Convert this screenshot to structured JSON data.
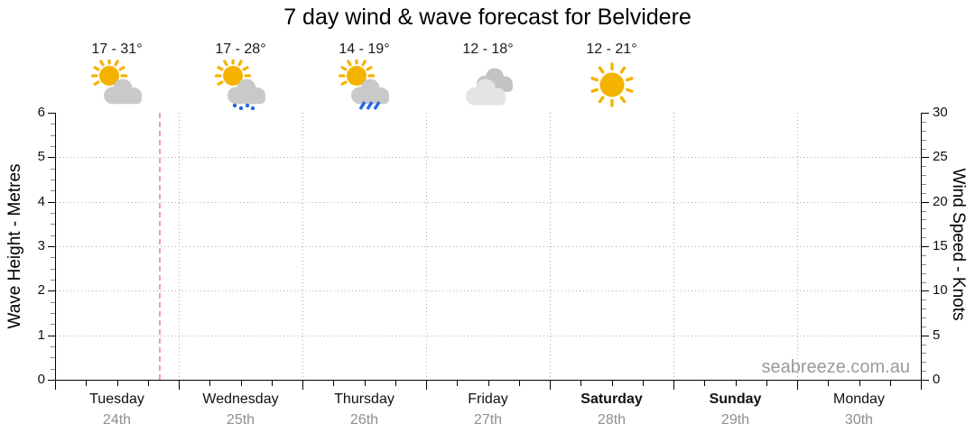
{
  "title": "7 day wind & wave forecast for Belvidere",
  "watermark": "seabreeze.com.au",
  "colors": {
    "sun": "#F3B300",
    "cloud": "#C9C9C9",
    "cloud_dark": "#C3C3C3",
    "cloud_light": "#E4E4E4",
    "rain_blue": "#2268DF",
    "now_line": "#F2A2A0",
    "gridline": "#ADADAD",
    "axis": "#000000",
    "date_gray": "#8F8F8F",
    "watermark_gray": "#9B9B9B"
  },
  "chart_data": {
    "type": "line",
    "title": "7 day wind & wave forecast for Belvidere",
    "series": [],
    "x_axis": {
      "minor_ticks_per_day": 3,
      "days": [
        {
          "label": "Tuesday",
          "date": "24th",
          "bold": false,
          "temp": "17 - 31°",
          "icon": "sun-cloud"
        },
        {
          "label": "Wednesday",
          "date": "25th",
          "bold": false,
          "temp": "17 - 28°",
          "icon": "sun-cloud-drizzle"
        },
        {
          "label": "Thursday",
          "date": "26th",
          "bold": false,
          "temp": "14 - 19°",
          "icon": "sun-cloud-rain"
        },
        {
          "label": "Friday",
          "date": "27th",
          "bold": false,
          "temp": "12 - 18°",
          "icon": "cloudy"
        },
        {
          "label": "Saturday",
          "date": "28th",
          "bold": true,
          "temp": "12 - 21°",
          "icon": "sunny"
        },
        {
          "label": "Sunday",
          "date": "29th",
          "bold": true,
          "temp": null,
          "icon": null
        },
        {
          "label": "Monday",
          "date": "30th",
          "bold": false,
          "temp": null,
          "icon": null
        }
      ]
    },
    "y_left": {
      "label": "Wave Height - Metres",
      "min": 0,
      "max": 6,
      "major_step": 1,
      "minor_step": 0.25,
      "tick_labels": [
        "0",
        "1",
        "2",
        "3",
        "4",
        "5",
        "6"
      ]
    },
    "y_right": {
      "label": "Wind Speed - Knots",
      "min": 0,
      "max": 30,
      "major_step": 5,
      "minor_step": 1,
      "tick_labels": [
        "0",
        "5",
        "10",
        "15",
        "20",
        "25",
        "30"
      ]
    },
    "grid": {
      "horizontal_at": [
        1,
        2,
        3,
        4,
        5
      ],
      "vertical_at_day_boundaries": true
    },
    "now_marker_day_fraction": 0.84
  }
}
